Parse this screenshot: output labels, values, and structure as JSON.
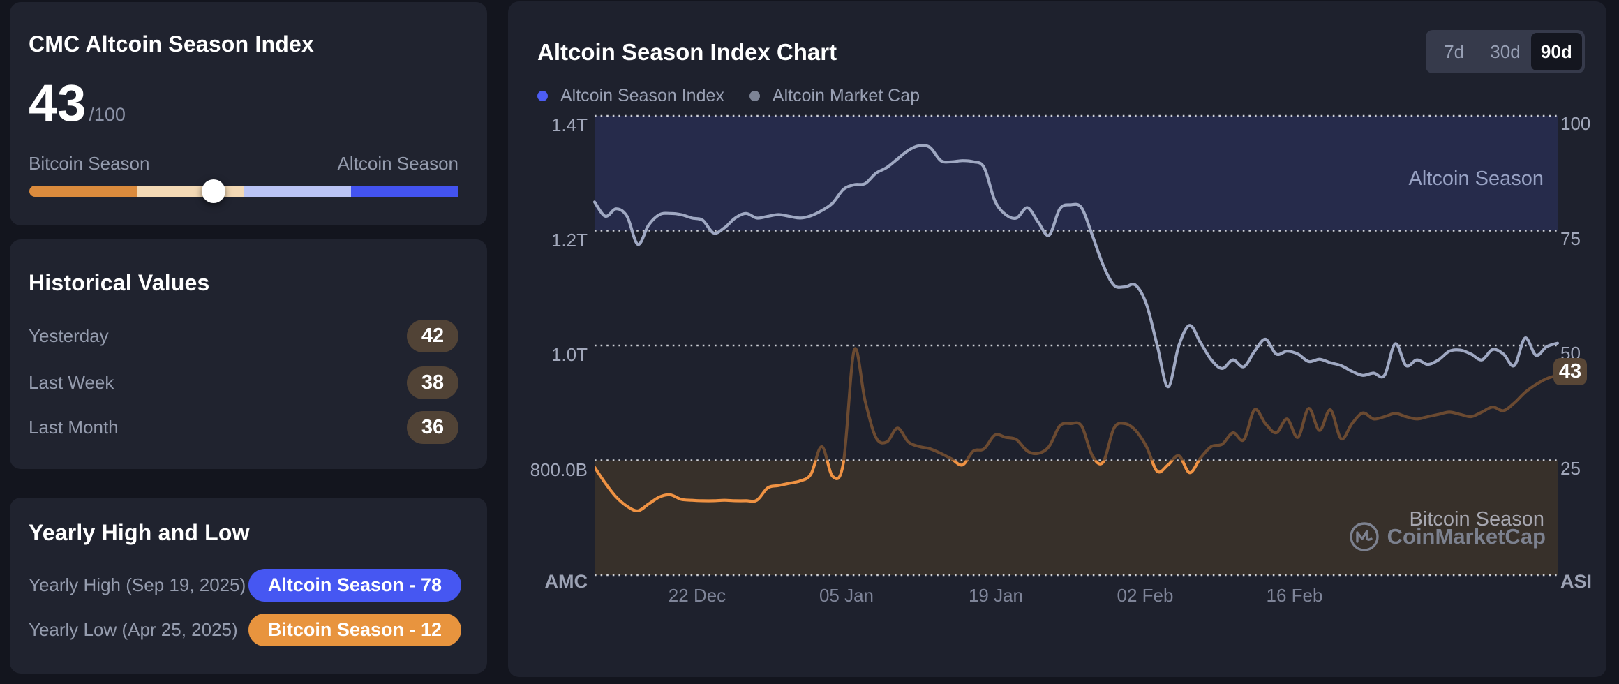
{
  "left_panel": {
    "index_card": {
      "title": "CMC Altcoin Season Index",
      "value": "43",
      "value_max": "/100",
      "left_label": "Bitcoin Season",
      "right_label": "Altcoin Season",
      "slider_percent": 43,
      "slider_colors": [
        "#DB8B3D",
        "#F3D9B5",
        "#BAC4F5",
        "#4353F0"
      ]
    },
    "history_card": {
      "title": "Historical Values",
      "rows": [
        {
          "label": "Yesterday",
          "value": "42"
        },
        {
          "label": "Last Week",
          "value": "38"
        },
        {
          "label": "Last Month",
          "value": "36"
        }
      ]
    },
    "yearly_card": {
      "title": "Yearly High and Low",
      "rows": [
        {
          "label": "Yearly High (Sep 19, 2025)",
          "value": "Altcoin Season - 78",
          "color": "#4657F2"
        },
        {
          "label": "Yearly Low (Apr 25, 2025)",
          "value": "Bitcoin Season - 12",
          "color": "#E8943E"
        }
      ]
    }
  },
  "chart_panel": {
    "title": "Altcoin Season Index Chart",
    "range_buttons": [
      {
        "label": "7d",
        "selected": false
      },
      {
        "label": "30d",
        "selected": false
      },
      {
        "label": "90d",
        "selected": true
      }
    ],
    "legend": [
      {
        "label": "Altcoin Season Index",
        "color": "#4D5DF3"
      },
      {
        "label": "Altcoin Market Cap",
        "color": "#7D8496"
      }
    ],
    "current_badge": "43",
    "zone_labels": {
      "top": "Altcoin Season",
      "bottom": "Bitcoin Season"
    },
    "corner_labels": {
      "left": "AMC",
      "right": "ASI"
    },
    "watermark": "CoinMarketCap"
  },
  "chart_data": {
    "type": "line",
    "x_ticks": [
      "22 Dec",
      "05 Jan",
      "19 Jan",
      "02 Feb",
      "16 Feb"
    ],
    "left_axis": {
      "label": "AMC",
      "ticks": [
        "1.4T",
        "1.2T",
        "1.0T",
        "800.0B"
      ],
      "range_billions": [
        600,
        1400
      ]
    },
    "right_axis": {
      "label": "ASI",
      "ticks": [
        "100",
        "75",
        "50",
        "25"
      ],
      "range": [
        0,
        100
      ]
    },
    "bands": [
      {
        "label": "Altcoin Season",
        "from": 75,
        "to": 100,
        "color": "#262b4b"
      },
      {
        "label": "Bitcoin Season",
        "from": 0,
        "to": 25,
        "color": "#37302a"
      }
    ],
    "series": [
      {
        "name": "Altcoin Season Index",
        "axis": "right",
        "color_low": "#EF9243",
        "color_high": "#6B4A31",
        "threshold": 25,
        "current_value": 43,
        "values": [
          23.5,
          20,
          17,
          15,
          14,
          15.5,
          17,
          17.5,
          16.5,
          16.3,
          16.2,
          16.2,
          16.3,
          16.2,
          16.2,
          16.3,
          19,
          19.5,
          20,
          20.5,
          22,
          28,
          21.5,
          24.5,
          49,
          38,
          30,
          29,
          32,
          29,
          28,
          27.5,
          26.5,
          25.3,
          24,
          27,
          27.5,
          30.5,
          30,
          29.5,
          27,
          26.5,
          28,
          32.5,
          33,
          32.5,
          26,
          24.6,
          32,
          33,
          31.5,
          28,
          22.6,
          24,
          26,
          22.3,
          25.5,
          28,
          28.5,
          31,
          29.5,
          36,
          33,
          31,
          34,
          30,
          36.3,
          31.5,
          36,
          29.7,
          33,
          35.3,
          34,
          34.5,
          35.2,
          34.5,
          34,
          34.5,
          35,
          35.5,
          35,
          34.5,
          35.5,
          36.6,
          35.8,
          37.5,
          39.8,
          41.5,
          42.8,
          43.5
        ]
      },
      {
        "name": "Altcoin Market Cap",
        "axis": "left",
        "unit": "billion_usd",
        "color": "#9FA8C2",
        "values": [
          1250,
          1225,
          1238,
          1225,
          1176,
          1210,
          1228,
          1230,
          1228,
          1222,
          1218,
          1196,
          1205,
          1222,
          1230,
          1222,
          1225,
          1228,
          1225,
          1222,
          1226,
          1235,
          1248,
          1272,
          1280,
          1282,
          1300,
          1310,
          1325,
          1340,
          1348,
          1345,
          1322,
          1320,
          1322,
          1320,
          1310,
          1252,
          1228,
          1222,
          1240,
          1215,
          1192,
          1238,
          1245,
          1240,
          1192,
          1140,
          1105,
          1102,
          1105,
          1072,
          1000,
          928,
          1000,
          1035,
          1005,
          975,
          960,
          975,
          963,
          990,
          1011,
          985,
          990,
          985,
          972,
          976,
          970,
          965,
          955,
          948,
          952,
          948,
          1003,
          965,
          975,
          967,
          975,
          990,
          992,
          985,
          975,
          993,
          985,
          965,
          1013,
          983,
          998,
          1004
        ]
      }
    ]
  }
}
